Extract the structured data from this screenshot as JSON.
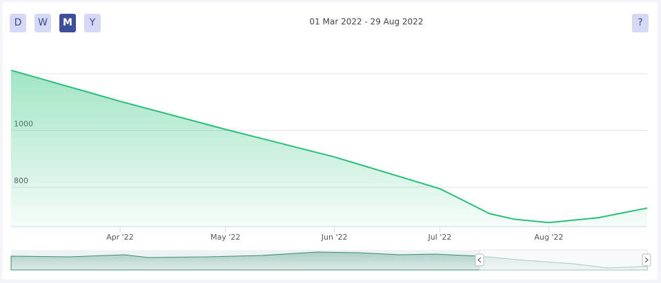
{
  "buttons": [
    "D",
    "W",
    "M",
    "Y"
  ],
  "active_button": "M",
  "help_button": "?",
  "chart_data": {
    "type": "area",
    "title": "01 Mar 2022 - 29 Aug 2022",
    "color": "#27bf78",
    "x": [
      "2022-03-01",
      "2022-04-01",
      "2022-05-01",
      "2022-06-01",
      "2022-07-01",
      "2022-07-08",
      "2022-07-15",
      "2022-07-22",
      "2022-08-01",
      "2022-08-15",
      "2022-08-29"
    ],
    "values": [
      1212,
      1103,
      1004,
      907,
      795,
      752,
      708,
      688,
      676,
      693,
      727
    ],
    "xlim": [
      "2022-03-01",
      "2022-08-29"
    ],
    "xticks": [
      {
        "value": "2022-04-01",
        "label": "Apr '22"
      },
      {
        "value": "2022-05-01",
        "label": "May '22"
      },
      {
        "value": "2022-06-01",
        "label": "Jun '22"
      },
      {
        "value": "2022-07-01",
        "label": "Jul '22"
      },
      {
        "value": "2022-08-01",
        "label": "Aug '22"
      }
    ],
    "ylim": [
      662,
      1200
    ],
    "yticks": [
      800,
      1000
    ],
    "grid": true
  }
}
